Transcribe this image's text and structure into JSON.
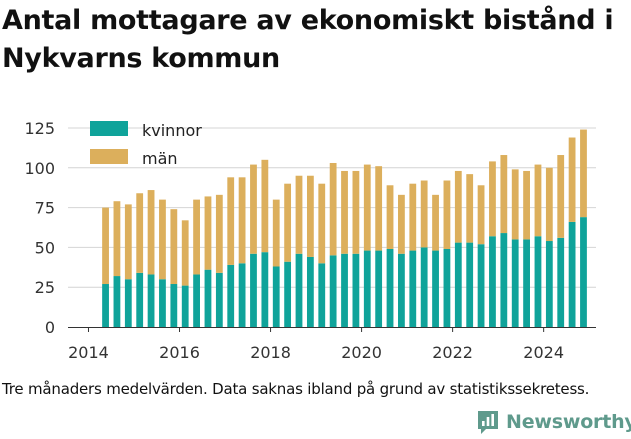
{
  "title": "Antal mottagare av ekonomiskt bistånd i Nykvarns kommun",
  "caption": "Tre månaders medelvärden. Data saknas ibland på grund av statistikssekretess.",
  "brand": "Newsworthy",
  "chart_data": {
    "type": "bar",
    "stacked": true,
    "title": "Antal mottagare av ekonomiskt bistånd i Nykvarns kommun",
    "ylim": [
      0,
      130
    ],
    "yticks": [
      0,
      25,
      50,
      75,
      100,
      125
    ],
    "xticks": [
      2014,
      2016,
      2018,
      2020,
      2022,
      2024
    ],
    "xlim": [
      2013.55,
      2025.15
    ],
    "grid": true,
    "legend_position": "top-left",
    "x": [
      2014.375,
      2014.625,
      2014.875,
      2015.125,
      2015.375,
      2015.625,
      2015.875,
      2016.125,
      2016.375,
      2016.625,
      2016.875,
      2017.125,
      2017.375,
      2017.625,
      2017.875,
      2018.125,
      2018.375,
      2018.625,
      2018.875,
      2019.125,
      2019.375,
      2019.625,
      2019.875,
      2020.125,
      2020.375,
      2020.625,
      2020.875,
      2021.125,
      2021.375,
      2021.625,
      2021.875,
      2022.125,
      2022.375,
      2022.625,
      2022.875,
      2023.125,
      2023.375,
      2023.625,
      2023.875,
      2024.125,
      2024.375,
      2024.625,
      2024.875
    ],
    "series": [
      {
        "name": "kvinnor",
        "color": "#0fa39a",
        "values": [
          27,
          32,
          30,
          34,
          33,
          30,
          27,
          26,
          33,
          36,
          34,
          39,
          40,
          46,
          47,
          38,
          41,
          46,
          44,
          40,
          45,
          46,
          46,
          48,
          48,
          49,
          46,
          48,
          50,
          48,
          49,
          53,
          53,
          52,
          57,
          59,
          55,
          55,
          57,
          54,
          56,
          66,
          69
        ]
      },
      {
        "name": "män",
        "color": "#dcaf5c",
        "values": [
          48,
          47,
          47,
          50,
          53,
          50,
          47,
          41,
          47,
          46,
          49,
          55,
          54,
          56,
          58,
          42,
          49,
          49,
          51,
          50,
          58,
          52,
          52,
          54,
          53,
          40,
          37,
          42,
          42,
          35,
          43,
          45,
          43,
          37,
          47,
          49,
          44,
          43,
          45,
          46,
          52,
          53,
          55
        ]
      }
    ]
  }
}
